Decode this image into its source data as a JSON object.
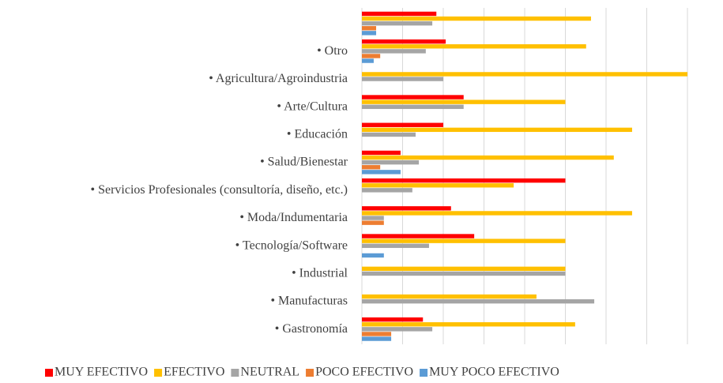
{
  "chart_data": {
    "type": "hbar",
    "categories": [
      null,
      "• Otro",
      "• Agricultura/Agroindustria",
      "• Arte/Cultura",
      "• Educación",
      "• Salud/Bienestar",
      "• Servicios Profesionales (consultoría, diseño, etc.)",
      "• Moda/Indumentaria",
      "• Tecnología/Software",
      "• Industrial",
      "• Manufacturas",
      "• Gastronomía"
    ],
    "series": [
      {
        "name": "MUY EFECTIVO",
        "color": "#ff0000",
        "values": [
          18.3,
          20.6,
          0,
          25,
          20,
          9.5,
          50,
          21.9,
          27.6,
          0,
          0,
          15
        ]
      },
      {
        "name": "EFECTIVO",
        "color": "#ffc000",
        "values": [
          56.3,
          55.1,
          80,
          50,
          66.4,
          61.9,
          37.3,
          66.4,
          50,
          50,
          42.9,
          52.4
        ]
      },
      {
        "name": "NEUTRAL",
        "color": "#a5a5a5",
        "values": [
          17.3,
          15.7,
          20,
          25,
          13.2,
          14,
          12.4,
          5.4,
          16.5,
          50,
          57.1,
          17.3
        ]
      },
      {
        "name": "POCO EFECTIVO",
        "color": "#ed7d31",
        "values": [
          3.5,
          4.5,
          0,
          0,
          0,
          4.5,
          0,
          5.4,
          0,
          0,
          0,
          7.2
        ]
      },
      {
        "name": "MUY POCO EFECTIVO",
        "color": "#5b9bd5",
        "values": [
          3.5,
          2.9,
          0,
          0,
          0,
          9.5,
          0,
          0,
          5.4,
          0,
          0,
          7.2
        ]
      }
    ],
    "xlim": [
      0,
      80
    ],
    "xticks": [
      0,
      10,
      20,
      30,
      40,
      50,
      60,
      70,
      80
    ],
    "grid": true,
    "legend": "bottom"
  }
}
